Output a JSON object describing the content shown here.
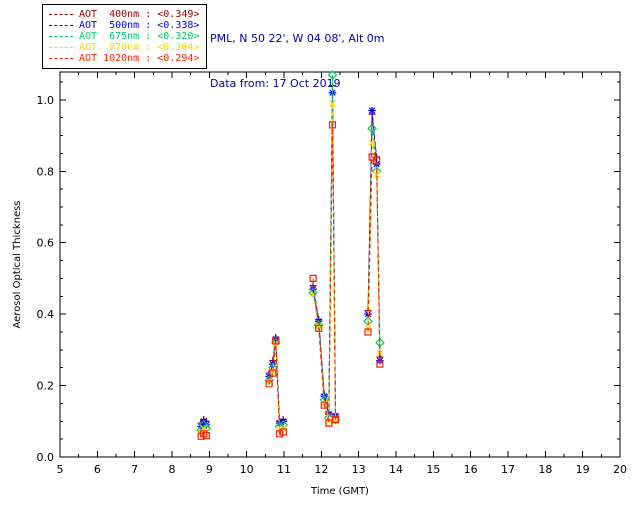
{
  "header": {
    "line1": "PML, N 50 22', W 04 08', Alt 0m",
    "line2": "Data from: 17 Oct 2019",
    "text_color": "#0000aa"
  },
  "chart_data": {
    "type": "line",
    "title": "",
    "xlabel": "Time (GMT)",
    "ylabel": "Aerosol Optical Thickness",
    "xlim": [
      5,
      20
    ],
    "ylim": [
      0,
      1.078
    ],
    "xticks": [
      5,
      6,
      7,
      8,
      9,
      10,
      11,
      12,
      13,
      14,
      15,
      16,
      17,
      18,
      19,
      20
    ],
    "yticks": [
      0.0,
      0.2,
      0.4,
      0.6,
      0.8,
      1.0
    ],
    "grid": false,
    "legend_position": "top-left",
    "line_style": "dashed",
    "series": [
      {
        "name": "AOT  400nm",
        "mean": "<0.349>",
        "color": "#a00000",
        "marker": "plus",
        "segments": [
          [
            [
              8.78,
              0.095
            ],
            [
              8.85,
              0.105
            ],
            [
              8.92,
              0.1
            ]
          ],
          [
            [
              10.6,
              0.235
            ],
            [
              10.7,
              0.27
            ],
            [
              10.78,
              0.335
            ],
            [
              10.88,
              0.1
            ],
            [
              10.98,
              0.105
            ]
          ],
          [
            [
              11.78,
              0.48
            ],
            [
              11.93,
              0.385
            ],
            [
              12.08,
              0.175
            ],
            [
              12.2,
              0.125
            ],
            [
              12.3,
              1.04
            ],
            [
              12.38,
              0.12
            ]
          ],
          [
            [
              13.25,
              0.41
            ],
            [
              13.36,
              0.96
            ],
            [
              13.48,
              0.84
            ],
            [
              13.57,
              0.28
            ]
          ]
        ]
      },
      {
        "name": "AOT  500nm",
        "mean": "<0.338>",
        "color": "#0000ff",
        "marker": "asterisk",
        "segments": [
          [
            [
              8.78,
              0.085
            ],
            [
              8.85,
              0.1
            ],
            [
              8.92,
              0.09
            ]
          ],
          [
            [
              10.6,
              0.225
            ],
            [
              10.7,
              0.26
            ],
            [
              10.78,
              0.33
            ],
            [
              10.88,
              0.095
            ],
            [
              10.98,
              0.1
            ]
          ],
          [
            [
              11.78,
              0.47
            ],
            [
              11.93,
              0.38
            ],
            [
              12.08,
              0.17
            ],
            [
              12.2,
              0.12
            ],
            [
              12.3,
              1.02
            ],
            [
              12.38,
              0.115
            ]
          ],
          [
            [
              13.25,
              0.4
            ],
            [
              13.36,
              0.97
            ],
            [
              13.48,
              0.82
            ],
            [
              13.57,
              0.27
            ]
          ]
        ]
      },
      {
        "name": "AOT  675nm",
        "mean": "<0.320>",
        "color": "#00cc66",
        "marker": "diamond",
        "segments": [
          [
            [
              8.78,
              0.075
            ],
            [
              8.85,
              0.09
            ],
            [
              8.92,
              0.08
            ]
          ],
          [
            [
              10.6,
              0.215
            ],
            [
              10.7,
              0.25
            ],
            [
              10.78,
              0.32
            ],
            [
              10.88,
              0.085
            ],
            [
              10.98,
              0.09
            ]
          ],
          [
            [
              11.78,
              0.46
            ],
            [
              11.93,
              0.37
            ],
            [
              12.08,
              0.16
            ],
            [
              12.2,
              0.11
            ],
            [
              12.3,
              1.07
            ],
            [
              12.38,
              0.105
            ]
          ],
          [
            [
              13.25,
              0.38
            ],
            [
              13.36,
              0.92
            ],
            [
              13.48,
              0.8
            ],
            [
              13.57,
              0.32
            ]
          ]
        ]
      },
      {
        "name": "AOT  870nm",
        "mean": "<0.304>",
        "color": "#ffd800",
        "marker": "cross",
        "segments": [
          [
            [
              8.78,
              0.068
            ],
            [
              8.85,
              0.08
            ],
            [
              8.92,
              0.072
            ]
          ],
          [
            [
              10.6,
              0.21
            ],
            [
              10.7,
              0.24
            ],
            [
              10.78,
              0.315
            ],
            [
              10.88,
              0.075
            ],
            [
              10.98,
              0.08
            ]
          ],
          [
            [
              11.78,
              0.455
            ],
            [
              11.93,
              0.365
            ],
            [
              12.08,
              0.15
            ],
            [
              12.2,
              0.1
            ],
            [
              12.3,
              0.99
            ],
            [
              12.38,
              0.1
            ]
          ],
          [
            [
              13.25,
              0.36
            ],
            [
              13.36,
              0.88
            ],
            [
              13.48,
              0.79
            ],
            [
              13.57,
              0.29
            ]
          ]
        ]
      },
      {
        "name": "AOT 1020nm",
        "mean": "<0.294>",
        "color": "#ff2200",
        "marker": "square",
        "segments": [
          [
            [
              8.78,
              0.058
            ],
            [
              8.85,
              0.065
            ],
            [
              8.92,
              0.06
            ]
          ],
          [
            [
              10.6,
              0.205
            ],
            [
              10.7,
              0.235
            ],
            [
              10.78,
              0.325
            ],
            [
              10.88,
              0.065
            ],
            [
              10.98,
              0.07
            ]
          ],
          [
            [
              11.78,
              0.5
            ],
            [
              11.93,
              0.36
            ],
            [
              12.08,
              0.145
            ],
            [
              12.2,
              0.095
            ],
            [
              12.3,
              0.93
            ],
            [
              12.38,
              0.105
            ]
          ],
          [
            [
              13.25,
              0.35
            ],
            [
              13.36,
              0.84
            ],
            [
              13.48,
              0.83
            ],
            [
              13.57,
              0.26
            ]
          ]
        ]
      }
    ]
  }
}
